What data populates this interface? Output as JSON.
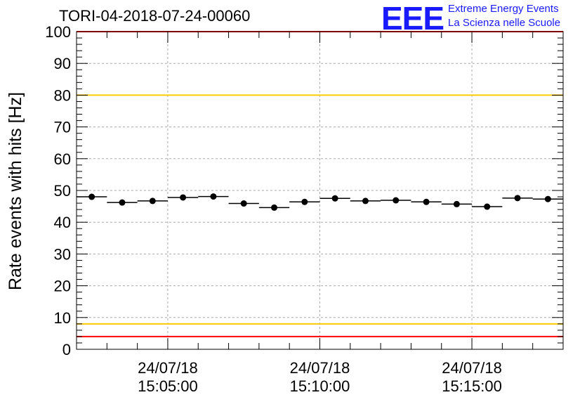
{
  "title": "TORI-04-2018-07-24-00060",
  "logo": {
    "mark": "EEE",
    "line1": "Extreme Energy Events",
    "line2": "La Scienza nelle Scuole",
    "color": "#1a1aff"
  },
  "chart_data": {
    "type": "scatter",
    "ylabel": "Rate events with hits [Hz]",
    "ylim": [
      0,
      100
    ],
    "y_ticks": [
      0,
      10,
      20,
      30,
      40,
      50,
      60,
      70,
      80,
      90,
      100
    ],
    "x_ticks": [
      {
        "time": "15:05:00",
        "date": "24/07/18"
      },
      {
        "time": "15:10:00",
        "date": "24/07/18"
      },
      {
        "time": "15:15:00",
        "date": "24/07/18"
      }
    ],
    "x_range": [
      "15:02:00",
      "15:18:00"
    ],
    "grid": true,
    "reference_lines": [
      {
        "y": 100,
        "color": "#ff0000"
      },
      {
        "y": 80,
        "color": "#ffcc00"
      },
      {
        "y": 8,
        "color": "#ffcc00"
      },
      {
        "y": 4,
        "color": "#ff0000"
      }
    ],
    "series": [
      {
        "bin_width_seconds": 60,
        "x": [
          "15:02:30",
          "15:03:30",
          "15:04:30",
          "15:05:30",
          "15:06:30",
          "15:07:30",
          "15:08:30",
          "15:09:30",
          "15:10:30",
          "15:11:30",
          "15:12:30",
          "15:13:30",
          "15:14:30",
          "15:15:30",
          "15:16:30",
          "15:17:30"
        ],
        "values": [
          48.0,
          46.2,
          46.7,
          47.8,
          48.1,
          45.9,
          44.6,
          46.4,
          47.5,
          46.7,
          46.9,
          46.4,
          45.7,
          44.9,
          47.6,
          47.3
        ]
      }
    ]
  }
}
